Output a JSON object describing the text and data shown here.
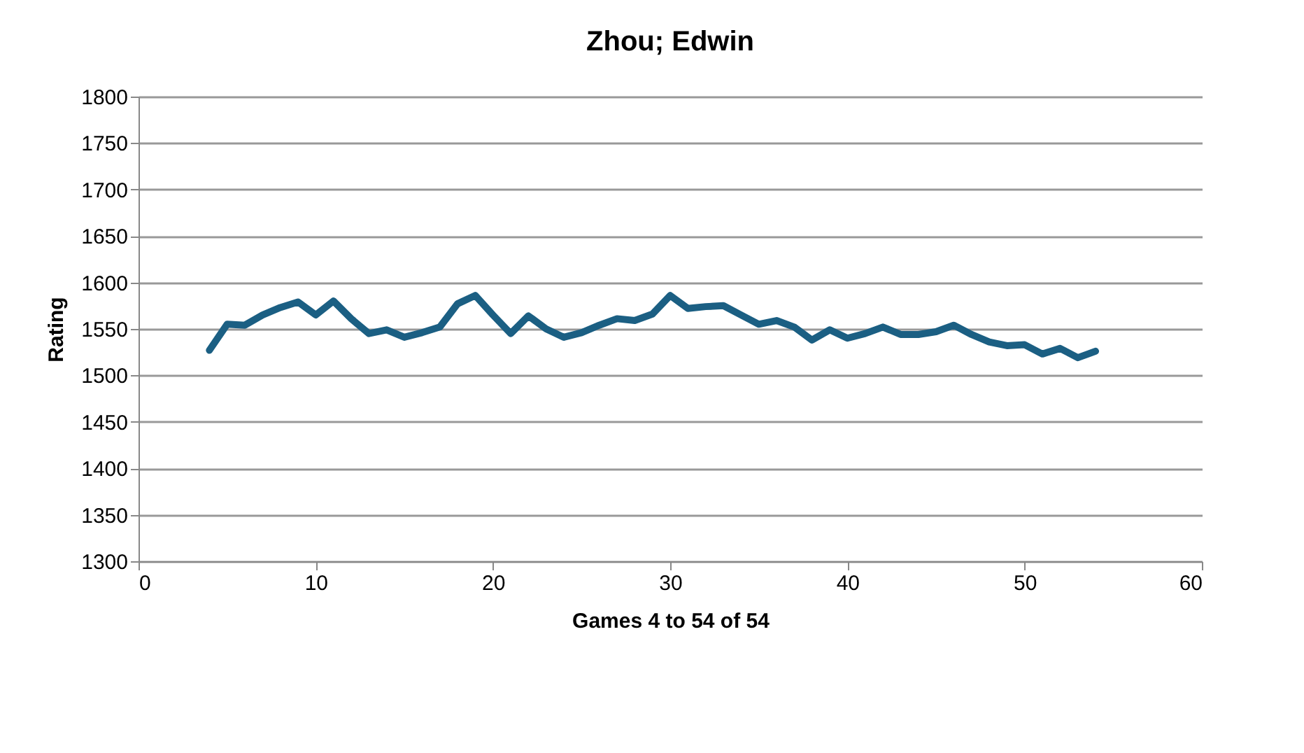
{
  "chart_data": {
    "type": "line",
    "title": "Zhou; Edwin",
    "xlabel": "Games 4 to 54 of 54",
    "ylabel": "Rating",
    "x": [
      4,
      5,
      6,
      7,
      8,
      9,
      10,
      11,
      12,
      13,
      14,
      15,
      16,
      17,
      18,
      19,
      20,
      21,
      22,
      23,
      24,
      25,
      26,
      27,
      28,
      29,
      30,
      31,
      32,
      33,
      34,
      35,
      36,
      37,
      38,
      39,
      40,
      41,
      42,
      43,
      44,
      45,
      46,
      47,
      48,
      49,
      50,
      51,
      52,
      53,
      54
    ],
    "series": [
      {
        "color": "#1b5f83",
        "values": [
          1527,
          1555,
          1554,
          1565,
          1573,
          1579,
          1565,
          1580,
          1561,
          1545,
          1549,
          1541,
          1546,
          1552,
          1577,
          1586,
          1565,
          1545,
          1564,
          1550,
          1541,
          1546,
          1554,
          1561,
          1559,
          1566,
          1586,
          1572,
          1574,
          1575,
          1565,
          1555,
          1559,
          1552,
          1538,
          1549,
          1540,
          1545,
          1552,
          1544,
          1544,
          1547,
          1554,
          1544,
          1536,
          1532,
          1533,
          1523,
          1529,
          1519,
          1526
        ]
      }
    ],
    "xlim": [
      0,
      60
    ],
    "xticks": [
      0,
      10,
      20,
      30,
      40,
      50,
      60
    ],
    "ylim": [
      1300,
      1800
    ],
    "yticks": [
      1300,
      1350,
      1400,
      1450,
      1500,
      1550,
      1600,
      1650,
      1700,
      1750,
      1800
    ],
    "grid": "y",
    "legend": false,
    "marker": "none",
    "line_style": "solid"
  }
}
